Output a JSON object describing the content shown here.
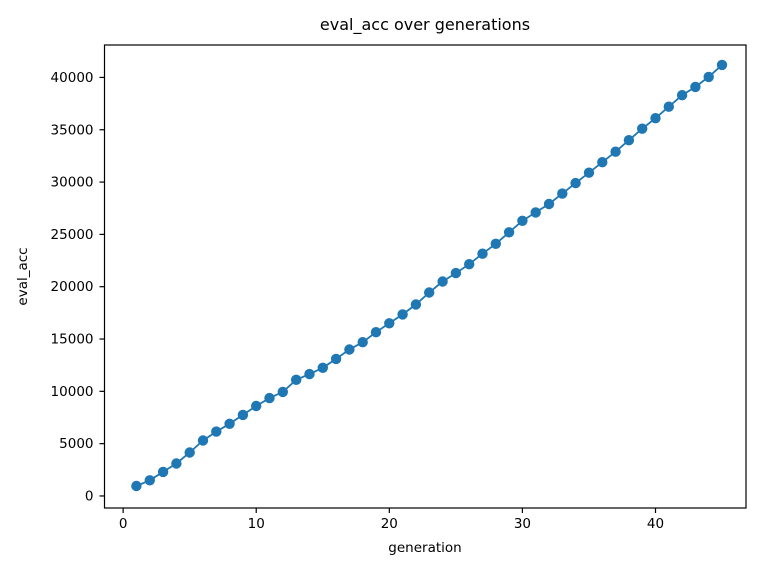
{
  "figure": {
    "background": "#ffffff",
    "text_color": "#000000",
    "spine_color": "#000000"
  },
  "chart_data": {
    "type": "line",
    "title": "eval_acc over generations",
    "xlabel": "generation",
    "ylabel": "eval_acc",
    "grid": false,
    "legend": "none",
    "xlim": [
      -1.4,
      46.8
    ],
    "ylim": [
      -1150,
      43100
    ],
    "xticks": [
      0,
      10,
      20,
      30,
      40
    ],
    "yticks": [
      0,
      5000,
      10000,
      15000,
      20000,
      25000,
      30000,
      35000,
      40000
    ],
    "series": [
      {
        "name": "eval_acc",
        "color": "#1f77b4",
        "marker": "circle",
        "marker_radius": 5.2,
        "line_width": 1.8,
        "x": [
          1,
          2,
          3,
          4,
          5,
          6,
          7,
          8,
          9,
          10,
          11,
          12,
          13,
          14,
          15,
          16,
          17,
          18,
          19,
          20,
          21,
          22,
          23,
          24,
          25,
          26,
          27,
          28,
          29,
          30,
          31,
          32,
          33,
          34,
          35,
          36,
          37,
          38,
          39,
          40,
          41,
          42,
          43,
          44,
          45
        ],
        "values": [
          950,
          1500,
          2300,
          3100,
          4150,
          5300,
          6150,
          6900,
          7750,
          8600,
          9350,
          9950,
          11100,
          11650,
          12250,
          13100,
          14000,
          14700,
          15650,
          16500,
          17350,
          18300,
          19450,
          20500,
          21300,
          22150,
          23150,
          24100,
          25200,
          26300,
          27100,
          27900,
          28900,
          29900,
          30900,
          31900,
          32900,
          34000,
          35100,
          36100,
          37200,
          38300,
          39100,
          40050,
          41200
        ]
      }
    ]
  }
}
